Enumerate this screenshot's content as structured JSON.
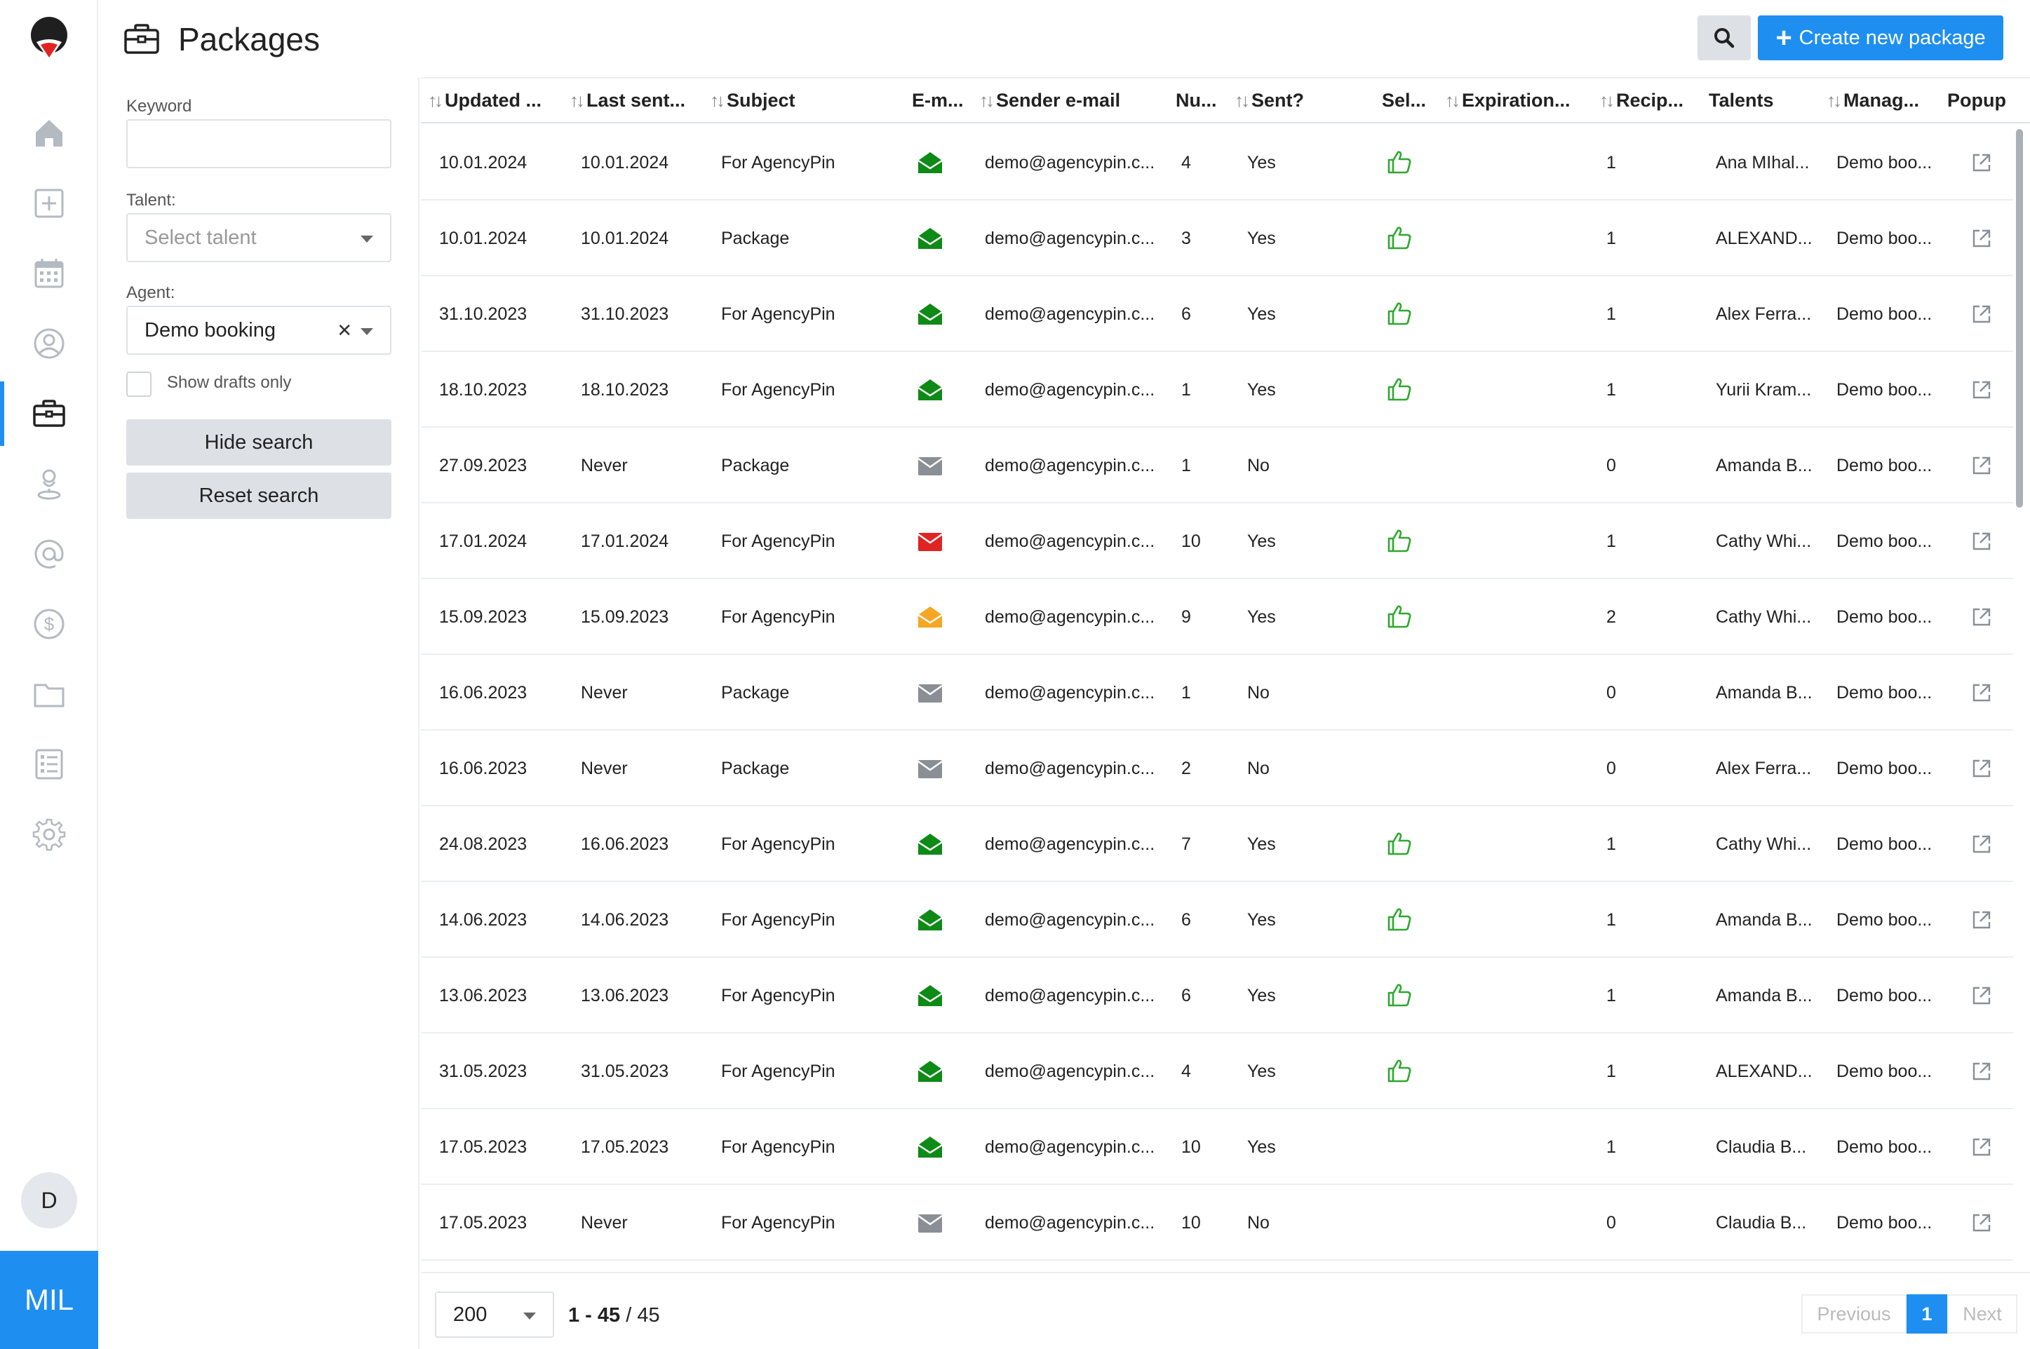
{
  "app": {
    "org_label": "MIL",
    "user_initial": "D",
    "nav": [
      {
        "name": "home-icon"
      },
      {
        "name": "add-square-icon"
      },
      {
        "name": "calendar-icon"
      },
      {
        "name": "user-circle-icon"
      },
      {
        "name": "briefcase-icon",
        "active": true
      },
      {
        "name": "person-pin-icon"
      },
      {
        "name": "at-icon"
      },
      {
        "name": "dollar-icon"
      },
      {
        "name": "folder-icon"
      },
      {
        "name": "checklist-icon"
      },
      {
        "name": "gear-icon"
      }
    ],
    "accent": "#1e8ff0"
  },
  "header": {
    "title": "Packages",
    "create_label": "Create new package"
  },
  "search": {
    "keyword_label": "Keyword",
    "keyword_value": "",
    "talent_label": "Talent:",
    "talent_placeholder": "Select talent",
    "agent_label": "Agent:",
    "agent_value": "Demo booking",
    "drafts_label": "Show drafts only",
    "hide_label": "Hide search",
    "reset_label": "Reset search"
  },
  "table": {
    "columns": [
      {
        "label": "Updated ...",
        "sortable": true
      },
      {
        "label": "Last sent...",
        "sortable": true
      },
      {
        "label": "Subject",
        "sortable": true
      },
      {
        "label": "E-m...",
        "sortable": false
      },
      {
        "label": "Sender e-mail",
        "sortable": true
      },
      {
        "label": "Nu...",
        "sortable": false
      },
      {
        "label": "Sent?",
        "sortable": true
      },
      {
        "label": "Sel...",
        "sortable": false
      },
      {
        "label": "Expiration...",
        "sortable": true
      },
      {
        "label": "Recip...",
        "sortable": true
      },
      {
        "label": "Talents",
        "sortable": false
      },
      {
        "label": "Manag...",
        "sortable": true
      },
      {
        "label": "Popup",
        "sortable": false
      }
    ],
    "rows": [
      {
        "updated": "10.01.2024",
        "last_sent": "10.01.2024",
        "subject": "For AgencyPin",
        "email_status": "opened",
        "sender": "demo@agencypin.c...",
        "num": "4",
        "sent": "Yes",
        "selected": true,
        "expiration": "",
        "recipients": "1",
        "talents": "Ana MIhal...",
        "manager": "Demo boo..."
      },
      {
        "updated": "10.01.2024",
        "last_sent": "10.01.2024",
        "subject": "Package",
        "email_status": "opened",
        "sender": "demo@agencypin.c...",
        "num": "3",
        "sent": "Yes",
        "selected": true,
        "expiration": "",
        "recipients": "1",
        "talents": "ALEXAND...",
        "manager": "Demo boo..."
      },
      {
        "updated": "31.10.2023",
        "last_sent": "31.10.2023",
        "subject": "For AgencyPin",
        "email_status": "opened",
        "sender": "demo@agencypin.c...",
        "num": "6",
        "sent": "Yes",
        "selected": true,
        "expiration": "",
        "recipients": "1",
        "talents": "Alex Ferra...",
        "manager": "Demo boo..."
      },
      {
        "updated": "18.10.2023",
        "last_sent": "18.10.2023",
        "subject": "For AgencyPin",
        "email_status": "opened",
        "sender": "demo@agencypin.c...",
        "num": "1",
        "sent": "Yes",
        "selected": true,
        "expiration": "",
        "recipients": "1",
        "talents": "Yurii Kram...",
        "manager": "Demo boo..."
      },
      {
        "updated": "27.09.2023",
        "last_sent": "Never",
        "subject": "Package",
        "email_status": "draft",
        "sender": "demo@agencypin.c...",
        "num": "1",
        "sent": "No",
        "selected": false,
        "expiration": "",
        "recipients": "0",
        "talents": "Amanda B...",
        "manager": "Demo boo..."
      },
      {
        "updated": "17.01.2024",
        "last_sent": "17.01.2024",
        "subject": "For AgencyPin",
        "email_status": "failed",
        "sender": "demo@agencypin.c...",
        "num": "10",
        "sent": "Yes",
        "selected": true,
        "expiration": "",
        "recipients": "1",
        "talents": "Cathy Whi...",
        "manager": "Demo boo..."
      },
      {
        "updated": "15.09.2023",
        "last_sent": "15.09.2023",
        "subject": "For AgencyPin",
        "email_status": "partial",
        "sender": "demo@agencypin.c...",
        "num": "9",
        "sent": "Yes",
        "selected": true,
        "expiration": "",
        "recipients": "2",
        "talents": "Cathy Whi...",
        "manager": "Demo boo..."
      },
      {
        "updated": "16.06.2023",
        "last_sent": "Never",
        "subject": "Package",
        "email_status": "draft",
        "sender": "demo@agencypin.c...",
        "num": "1",
        "sent": "No",
        "selected": false,
        "expiration": "",
        "recipients": "0",
        "talents": "Amanda B...",
        "manager": "Demo boo..."
      },
      {
        "updated": "16.06.2023",
        "last_sent": "Never",
        "subject": "Package",
        "email_status": "draft",
        "sender": "demo@agencypin.c...",
        "num": "2",
        "sent": "No",
        "selected": false,
        "expiration": "",
        "recipients": "0",
        "talents": "Alex Ferra...",
        "manager": "Demo boo..."
      },
      {
        "updated": "24.08.2023",
        "last_sent": "16.06.2023",
        "subject": "For AgencyPin",
        "email_status": "opened",
        "sender": "demo@agencypin.c...",
        "num": "7",
        "sent": "Yes",
        "selected": true,
        "expiration": "",
        "recipients": "1",
        "talents": "Cathy Whi...",
        "manager": "Demo boo..."
      },
      {
        "updated": "14.06.2023",
        "last_sent": "14.06.2023",
        "subject": "For AgencyPin",
        "email_status": "opened",
        "sender": "demo@agencypin.c...",
        "num": "6",
        "sent": "Yes",
        "selected": true,
        "expiration": "",
        "recipients": "1",
        "talents": "Amanda B...",
        "manager": "Demo boo..."
      },
      {
        "updated": "13.06.2023",
        "last_sent": "13.06.2023",
        "subject": "For AgencyPin",
        "email_status": "opened",
        "sender": "demo@agencypin.c...",
        "num": "6",
        "sent": "Yes",
        "selected": true,
        "expiration": "",
        "recipients": "1",
        "talents": "Amanda B...",
        "manager": "Demo boo..."
      },
      {
        "updated": "31.05.2023",
        "last_sent": "31.05.2023",
        "subject": "For AgencyPin",
        "email_status": "opened",
        "sender": "demo@agencypin.c...",
        "num": "4",
        "sent": "Yes",
        "selected": true,
        "expiration": "",
        "recipients": "1",
        "talents": "ALEXAND...",
        "manager": "Demo boo..."
      },
      {
        "updated": "17.05.2023",
        "last_sent": "17.05.2023",
        "subject": "For AgencyPin",
        "email_status": "opened",
        "sender": "demo@agencypin.c...",
        "num": "10",
        "sent": "Yes",
        "selected": false,
        "expiration": "",
        "recipients": "1",
        "talents": "Claudia B...",
        "manager": "Demo boo..."
      },
      {
        "updated": "17.05.2023",
        "last_sent": "Never",
        "subject": "For AgencyPin",
        "email_status": "draft",
        "sender": "demo@agencypin.c...",
        "num": "10",
        "sent": "No",
        "selected": false,
        "expiration": "",
        "recipients": "0",
        "talents": "Claudia B...",
        "manager": "Demo boo..."
      }
    ],
    "status_colors": {
      "opened": "#0e8a16",
      "failed": "#e02424",
      "partial": "#f5a623",
      "draft": "#8a8f96"
    },
    "thumb_color": "#2ea82e"
  },
  "footer": {
    "per_page": "200",
    "range_start_end": "1 - 45",
    "range_total": "/ 45",
    "prev_label": "Previous",
    "current_page": "1",
    "next_label": "Next"
  }
}
